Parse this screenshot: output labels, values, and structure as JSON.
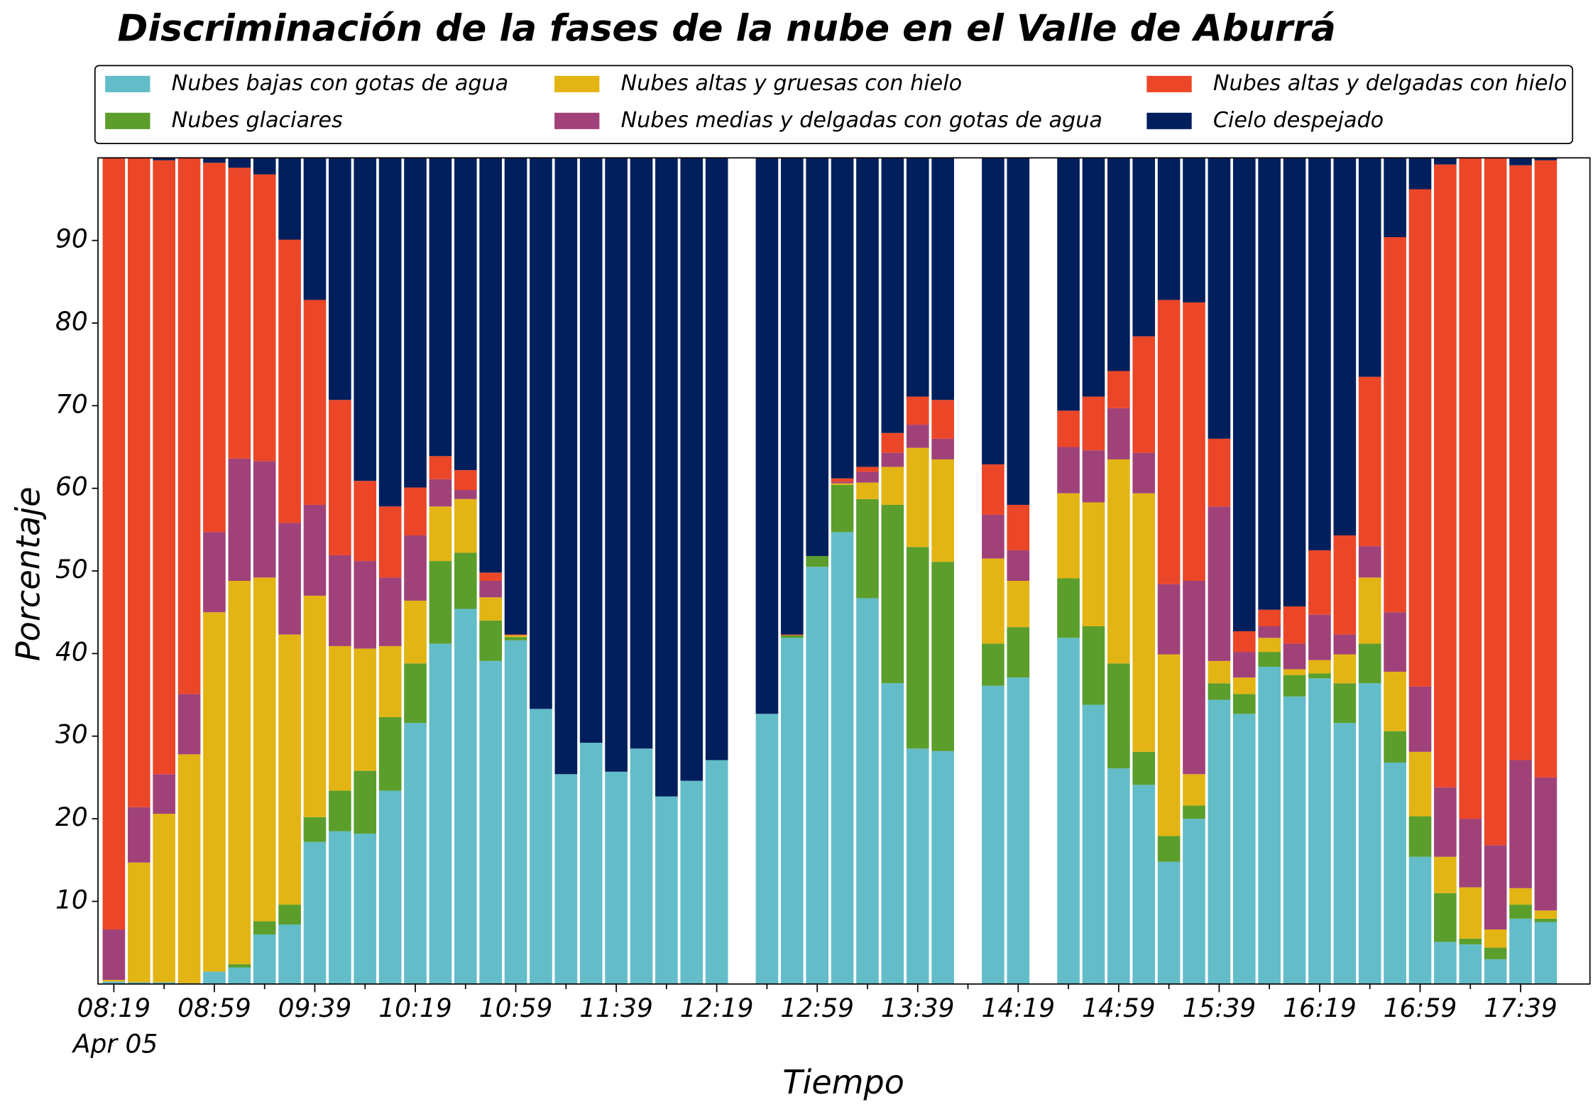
{
  "chart_data": {
    "type": "stacked_bar",
    "title": "Discriminación de la fases de la nube en el Valle de Aburrá",
    "x_label": "Tiempo",
    "y_label": "Porcentaje",
    "date_label": "Apr 05",
    "categories": [
      "08:19",
      null,
      null,
      null,
      "08:59",
      null,
      null,
      null,
      "09:39",
      null,
      null,
      null,
      "10:19",
      null,
      null,
      null,
      "10:59",
      null,
      null,
      null,
      "11:39",
      null,
      null,
      null,
      "12:19",
      null,
      null,
      null,
      "12:59",
      null,
      null,
      null,
      "13:39",
      null,
      null,
      null,
      "14:19",
      null,
      null,
      null,
      "14:59",
      null,
      null,
      null,
      "15:39",
      null,
      null,
      null,
      "16:19",
      null,
      null,
      null,
      "16:59",
      null,
      null,
      null,
      "17:39",
      null
    ],
    "ylim": [
      0,
      100
    ],
    "yticks": [
      10,
      20,
      30,
      40,
      50,
      60,
      70,
      80,
      90
    ],
    "series": [
      {
        "name": "Nubes bajas con gotas de agua",
        "color": "#63bdc8",
        "values": [
          0.3,
          0.2,
          0.2,
          0.1,
          1.5,
          2,
          6,
          7.2,
          17.2,
          18.5,
          18.2,
          23.4,
          31.6,
          41.2,
          45.4,
          39.1,
          41.6,
          33.3,
          25.4,
          29.2,
          25.7,
          28.5,
          22.7,
          24.6,
          27.1,
          null,
          32.7,
          41.9,
          50.5,
          54.7,
          46.7,
          36.4,
          28.5,
          28.2,
          null,
          36.1,
          37.1,
          null,
          41.9,
          33.8,
          26.1,
          24.1,
          14.8,
          20,
          34.4,
          32.7,
          38.4,
          34.8,
          37,
          31.6,
          36.4,
          26.8,
          15.4,
          5.1,
          4.8,
          3,
          7.9,
          7.5
        ]
      },
      {
        "name": "Nubes glaciares",
        "color": "#5b9e2c",
        "values": [
          0,
          0,
          0,
          0,
          0,
          0.4,
          1.6,
          2.4,
          3,
          4.9,
          7.6,
          8.9,
          7.2,
          10,
          6.8,
          4.9,
          0.4,
          0,
          0,
          0,
          0,
          0,
          0,
          0,
          0,
          null,
          0,
          0.3,
          1.3,
          5.7,
          12,
          21.6,
          24.4,
          22.9,
          null,
          5.1,
          6.1,
          null,
          7.2,
          9.5,
          12.7,
          4,
          3.1,
          1.6,
          2,
          2.4,
          1.8,
          2.6,
          0.6,
          4.8,
          4.8,
          3.8,
          4.9,
          5.9,
          0.7,
          1.4,
          1.7,
          0.4
        ]
      },
      {
        "name": "Nubes altas y gruesas con hielo",
        "color": "#e3b514",
        "values": [
          0.2,
          14.5,
          20.4,
          27.7,
          43.5,
          46.4,
          41.6,
          32.7,
          26.8,
          17.5,
          14.8,
          8.6,
          7.6,
          6.6,
          6.5,
          2.8,
          0.2,
          0,
          0,
          0,
          0,
          0,
          0,
          0,
          0,
          null,
          0,
          0,
          0,
          0.2,
          2,
          4.6,
          12,
          12.4,
          null,
          10.3,
          5.6,
          null,
          10.3,
          15,
          24.7,
          31.3,
          22,
          3.8,
          2.7,
          2,
          1.7,
          0.7,
          1.6,
          3.5,
          8,
          7.2,
          7.8,
          4.4,
          6.2,
          2.2,
          2,
          1
        ]
      },
      {
        "name": "Nubes medias y delgadas con gotas de agua",
        "color": "#a04279",
        "values": [
          6.1,
          6.7,
          4.8,
          7.3,
          9.7,
          14.8,
          14.1,
          13.5,
          11,
          11,
          10.6,
          8.3,
          7.9,
          3.3,
          1.1,
          2,
          0,
          0,
          0,
          0,
          0,
          0,
          0,
          0,
          0,
          null,
          0,
          0,
          0,
          0.2,
          1.3,
          1.7,
          2.8,
          2.5,
          null,
          5.3,
          3.7,
          null,
          5.6,
          6.3,
          6.2,
          4.9,
          8.5,
          23.4,
          18.7,
          3.1,
          1.4,
          3.1,
          5.5,
          2.4,
          3.8,
          7.2,
          7.9,
          8.4,
          8.3,
          10.2,
          15.5,
          16.1
        ]
      },
      {
        "name": "Nubes altas y delgadas con hielo",
        "color": "#ec4628",
        "values": [
          93.4,
          78.6,
          74.3,
          64.9,
          44.7,
          35.2,
          34.7,
          34.3,
          24.8,
          18.8,
          9.7,
          8.6,
          5.8,
          2.8,
          2.4,
          1,
          0.1,
          0,
          0,
          0,
          0,
          0,
          0,
          0,
          0,
          null,
          0,
          0.1,
          0,
          0.4,
          0.6,
          2.4,
          3.4,
          4.7,
          null,
          6.1,
          5.5,
          null,
          4.4,
          6.5,
          4.5,
          14.1,
          34.4,
          33.7,
          8.2,
          2.5,
          2,
          4.5,
          7.8,
          12,
          20.5,
          45.4,
          60.2,
          75.4,
          80,
          83.2,
          72,
          74.7
        ]
      },
      {
        "name": "Cielo despejado",
        "color": "#001f5c",
        "values": [
          0,
          0,
          0.3,
          0,
          0.6,
          1.2,
          2,
          9.9,
          17.2,
          29.3,
          39.1,
          42.2,
          39.9,
          36.1,
          37.8,
          50.2,
          57.7,
          66.7,
          74.6,
          70.8,
          74.3,
          71.5,
          77.3,
          75.4,
          72.9,
          null,
          67.3,
          57.7,
          48.2,
          38.8,
          37.4,
          33.3,
          28.9,
          29.3,
          null,
          37.1,
          42,
          null,
          30.6,
          28.9,
          25.8,
          21.6,
          17.2,
          17.5,
          34,
          57.3,
          54.7,
          54.3,
          47.5,
          45.7,
          26.5,
          9.6,
          3.8,
          0.8,
          0,
          0,
          0.9,
          0.3
        ]
      }
    ]
  }
}
